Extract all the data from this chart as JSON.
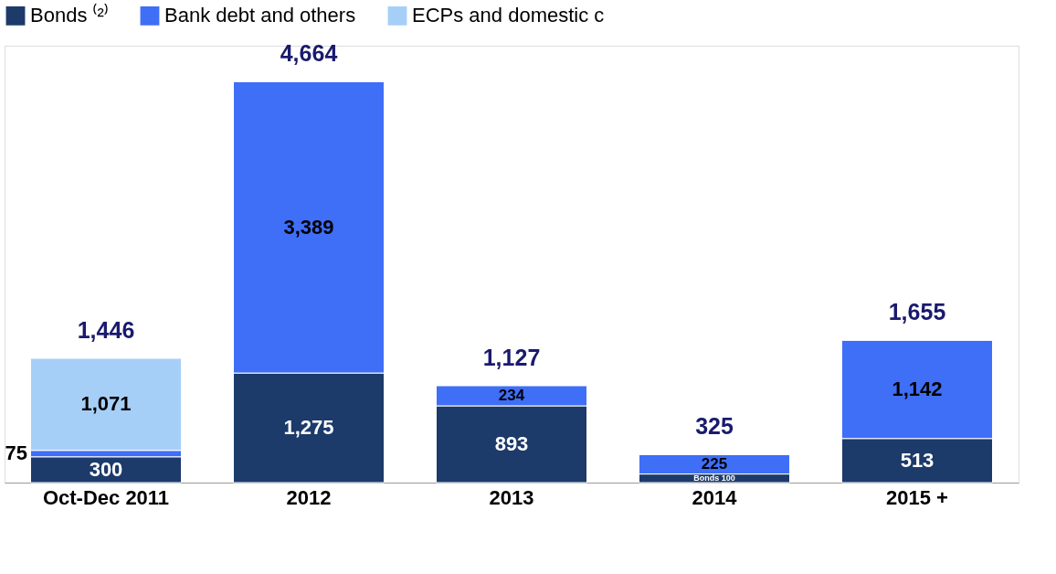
{
  "chart_data": {
    "type": "bar",
    "stacked": true,
    "legend": "top",
    "categories": [
      "Oct-Dec 2011",
      "2012",
      "2013",
      "2014",
      "2015 +"
    ],
    "series": [
      {
        "name": "Bonds ⁽²⁾",
        "color": "#1c3a6a",
        "values": [
          300,
          1275,
          893,
          100,
          513
        ],
        "value_labels": [
          "300",
          "1,275",
          "893",
          "Bonds 100",
          "513"
        ]
      },
      {
        "name": "Bank debt and others",
        "color": "#3f6ef7",
        "values": [
          75,
          3389,
          234,
          225,
          1142
        ],
        "value_labels": [
          "75",
          "3,389",
          "234",
          "225",
          "1,142"
        ]
      },
      {
        "name": "ECPs and domestic c",
        "color": "#a6cff8",
        "values": [
          1071,
          null,
          null,
          null,
          null
        ],
        "value_labels": [
          "1,071",
          null,
          null,
          null,
          null
        ]
      }
    ],
    "totals": [
      "1,446",
      "4,664",
      "1,127",
      "325",
      "1,655"
    ]
  }
}
